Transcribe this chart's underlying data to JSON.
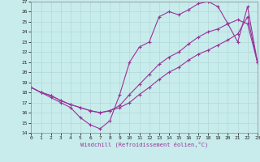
{
  "xlabel": "Windchill (Refroidissement éolien,°C)",
  "xlim": [
    0,
    23
  ],
  "ylim": [
    14,
    27
  ],
  "xticks": [
    0,
    1,
    2,
    3,
    4,
    5,
    6,
    7,
    8,
    9,
    10,
    11,
    12,
    13,
    14,
    15,
    16,
    17,
    18,
    19,
    20,
    21,
    22,
    23
  ],
  "yticks": [
    14,
    15,
    16,
    17,
    18,
    19,
    20,
    21,
    22,
    23,
    24,
    25,
    26,
    27
  ],
  "bg_color": "#c8ecec",
  "grid_color": "#b0d8d8",
  "line_color": "#993399",
  "line1_x": [
    0,
    1,
    2,
    3,
    4,
    5,
    6,
    7,
    8,
    9,
    10,
    11,
    12,
    13,
    14,
    15,
    16,
    17,
    18,
    19,
    20,
    21,
    22,
    23
  ],
  "line1_y": [
    18.5,
    18.0,
    17.5,
    17.0,
    16.5,
    15.5,
    14.8,
    14.4,
    15.2,
    17.8,
    21.0,
    22.5,
    23.0,
    25.5,
    26.0,
    25.7,
    26.2,
    26.8,
    27.0,
    26.5,
    24.8,
    23.0,
    26.5,
    21.0
  ],
  "line2_x": [
    0,
    1,
    2,
    3,
    4,
    5,
    6,
    7,
    8,
    9,
    10,
    11,
    12,
    13,
    14,
    15,
    16,
    17,
    18,
    19,
    20,
    21,
    22,
    23
  ],
  "line2_y": [
    18.5,
    18.0,
    17.7,
    17.2,
    16.8,
    16.5,
    16.2,
    16.0,
    16.2,
    16.7,
    17.8,
    18.8,
    19.8,
    20.8,
    21.5,
    22.0,
    22.8,
    23.5,
    24.0,
    24.3,
    24.8,
    25.2,
    24.8,
    21.0
  ],
  "line3_x": [
    0,
    1,
    2,
    3,
    4,
    5,
    6,
    7,
    8,
    9,
    10,
    11,
    12,
    13,
    14,
    15,
    16,
    17,
    18,
    19,
    20,
    21,
    22,
    23
  ],
  "line3_y": [
    18.5,
    18.0,
    17.7,
    17.2,
    16.8,
    16.5,
    16.2,
    16.0,
    16.2,
    16.5,
    17.0,
    17.8,
    18.5,
    19.3,
    20.0,
    20.5,
    21.2,
    21.8,
    22.2,
    22.7,
    23.2,
    23.8,
    25.5,
    21.0
  ]
}
